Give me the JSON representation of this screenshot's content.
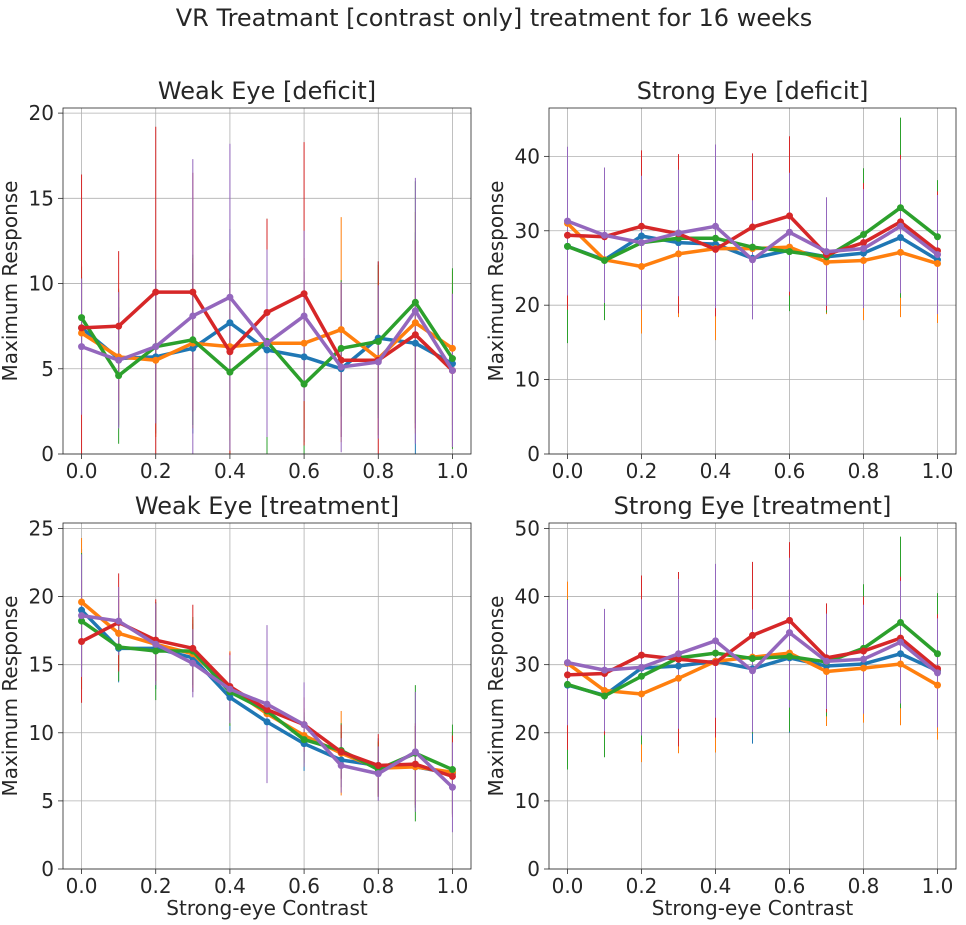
{
  "suptitle": "VR Treatmant [contrast only] treatment for 16 weeks",
  "colors": [
    "#1f77b4",
    "#ff7f0e",
    "#2ca02c",
    "#d62728",
    "#9467bd"
  ],
  "chart_data": [
    {
      "type": "line",
      "title": "Weak Eye [deficit]",
      "xlabel": "",
      "ylabel": "Maximum Response",
      "xlim": [
        -0.05,
        1.05
      ],
      "ylim": [
        0,
        20.3
      ],
      "xticks": [
        "0.0",
        "0.2",
        "0.4",
        "0.6",
        "0.8",
        "1.0"
      ],
      "yticks": [
        "0",
        "5",
        "10",
        "15",
        "20"
      ],
      "grid": true,
      "x": [
        0.0,
        0.1,
        0.2,
        0.3,
        0.4,
        0.5,
        0.6,
        0.7,
        0.8,
        0.9,
        1.0
      ],
      "series": [
        {
          "values": [
            7.4,
            5.6,
            5.7,
            6.2,
            7.7,
            6.1,
            5.7,
            5.0,
            6.8,
            6.5,
            5.3
          ]
        },
        {
          "values": [
            7.1,
            5.7,
            5.5,
            6.5,
            6.3,
            6.5,
            6.5,
            7.3,
            5.6,
            7.7,
            6.2
          ]
        },
        {
          "values": [
            8.0,
            4.6,
            6.3,
            6.7,
            4.8,
            6.6,
            4.1,
            6.2,
            6.6,
            8.9,
            5.6
          ]
        },
        {
          "values": [
            7.4,
            7.5,
            9.5,
            9.5,
            6.0,
            8.3,
            9.4,
            5.5,
            5.5,
            7.0,
            4.9
          ]
        },
        {
          "values": [
            6.3,
            5.5,
            6.3,
            8.1,
            9.2,
            6.5,
            8.1,
            5.1,
            5.4,
            8.4,
            4.9
          ]
        }
      ],
      "error": [
        [
          3.0,
          4.0,
          4.5,
          5.0,
          5.5,
          4.5,
          5.0,
          4.0,
          4.5,
          6.5,
          4.5
        ],
        [
          3.0,
          4.0,
          4.5,
          5.0,
          5.5,
          4.5,
          5.0,
          6.6,
          4.5,
          6.5,
          4.5
        ],
        [
          3.0,
          4.0,
          4.5,
          5.0,
          5.5,
          7.2,
          5.0,
          4.0,
          4.5,
          7.1,
          5.3
        ],
        [
          9.0,
          4.4,
          9.7,
          7.0,
          6.0,
          5.5,
          8.9,
          4.5,
          5.8,
          5.5,
          4.5
        ],
        [
          4.0,
          4.0,
          4.5,
          9.2,
          9.0,
          5.5,
          5.0,
          5.0,
          4.5,
          7.8,
          4.5
        ]
      ]
    },
    {
      "type": "line",
      "title": "Strong Eye [deficit]",
      "xlabel": "",
      "ylabel": "Maximum Response",
      "xlim": [
        -0.05,
        1.05
      ],
      "ylim": [
        0,
        46.5
      ],
      "xticks": [
        "0.0",
        "0.2",
        "0.4",
        "0.6",
        "0.8",
        "1.0"
      ],
      "yticks": [
        "0",
        "10",
        "20",
        "30",
        "40"
      ],
      "grid": true,
      "x": [
        0.0,
        0.1,
        0.2,
        0.3,
        0.4,
        0.5,
        0.6,
        0.7,
        0.8,
        0.9,
        1.0
      ],
      "series": [
        {
          "values": [
            27.9,
            26.1,
            29.3,
            28.4,
            28.2,
            26.3,
            27.4,
            26.5,
            27.0,
            29.1,
            26.1
          ]
        },
        {
          "values": [
            31.0,
            26.1,
            25.2,
            26.9,
            27.6,
            27.6,
            27.8,
            25.8,
            26.0,
            27.1,
            25.6
          ]
        },
        {
          "values": [
            27.9,
            26.0,
            28.4,
            29.0,
            29.0,
            27.8,
            27.2,
            26.5,
            29.5,
            33.1,
            29.2
          ]
        },
        {
          "values": [
            29.4,
            29.2,
            30.6,
            29.6,
            27.5,
            30.5,
            32.0,
            26.8,
            28.4,
            31.2,
            27.3
          ]
        },
        {
          "values": [
            31.3,
            29.4,
            28.4,
            29.7,
            30.6,
            26.1,
            29.8,
            27.2,
            27.6,
            30.6,
            26.8
          ]
        }
      ],
      "error": [
        [
          10.0,
          8.0,
          9.0,
          8.5,
          9.0,
          8.0,
          8.0,
          7.5,
          8.0,
          9.0,
          8.0
        ],
        [
          10.0,
          7.3,
          9.0,
          8.5,
          12.3,
          8.0,
          8.0,
          7.0,
          8.0,
          8.7,
          8.0
        ],
        [
          13.0,
          8.0,
          9.0,
          8.5,
          9.0,
          8.0,
          8.0,
          7.5,
          8.9,
          12.1,
          7.6
        ],
        [
          10.0,
          8.0,
          10.2,
          10.7,
          9.0,
          9.9,
          10.7,
          7.5,
          8.0,
          9.0,
          8.0
        ],
        [
          10.0,
          9.1,
          9.0,
          8.5,
          11.0,
          8.0,
          8.0,
          7.3,
          8.0,
          9.0,
          8.0
        ]
      ]
    },
    {
      "type": "line",
      "title": "Weak Eye [treatment]",
      "xlabel": "Strong-eye Contrast",
      "ylabel": "Maximum Response",
      "xlim": [
        -0.05,
        1.05
      ],
      "ylim": [
        0,
        25.4
      ],
      "xticks": [
        "0.0",
        "0.2",
        "0.4",
        "0.6",
        "0.8",
        "1.0"
      ],
      "yticks": [
        "0",
        "5",
        "10",
        "15",
        "20",
        "25"
      ],
      "grid": true,
      "x": [
        0.0,
        0.1,
        0.2,
        0.3,
        0.4,
        0.5,
        0.6,
        0.7,
        0.8,
        0.9,
        1.0
      ],
      "series": [
        {
          "values": [
            19.0,
            16.2,
            16.2,
            15.5,
            12.6,
            10.8,
            9.2,
            8.0,
            7.6,
            7.5,
            7.0
          ]
        },
        {
          "values": [
            19.6,
            17.3,
            16.5,
            15.8,
            13.3,
            11.4,
            9.8,
            8.5,
            7.4,
            7.5,
            7.1
          ]
        },
        {
          "values": [
            18.2,
            16.3,
            16.0,
            16.0,
            13.0,
            11.6,
            9.5,
            8.7,
            7.3,
            8.5,
            7.3
          ]
        },
        {
          "values": [
            16.7,
            18.1,
            16.8,
            16.2,
            13.4,
            11.7,
            10.6,
            8.6,
            7.6,
            7.7,
            6.8
          ]
        },
        {
          "values": [
            18.6,
            18.2,
            16.5,
            15.1,
            13.2,
            12.1,
            10.6,
            7.6,
            7.0,
            8.6,
            6.0
          ]
        }
      ],
      "error": [
        [
          4.5,
          2.5,
          3.0,
          2.5,
          2.5,
          2.5,
          2.0,
          2.0,
          2.0,
          3.0,
          3.0
        ],
        [
          4.7,
          2.5,
          3.0,
          2.5,
          2.7,
          2.5,
          2.0,
          3.1,
          2.0,
          3.0,
          3.0
        ],
        [
          5.0,
          2.5,
          3.6,
          2.5,
          2.5,
          2.5,
          2.0,
          2.0,
          2.0,
          5.0,
          3.3
        ],
        [
          4.5,
          3.6,
          3.0,
          3.2,
          2.5,
          2.5,
          2.0,
          2.0,
          2.3,
          3.0,
          3.0
        ],
        [
          4.5,
          2.5,
          3.0,
          2.5,
          2.5,
          5.8,
          3.1,
          2.0,
          2.0,
          4.4,
          3.3
        ]
      ]
    },
    {
      "type": "line",
      "title": "Strong Eye [treatment]",
      "xlabel": "Strong-eye Contrast",
      "ylabel": "Maximum Response",
      "xlim": [
        -0.05,
        1.05
      ],
      "ylim": [
        0,
        50.8
      ],
      "xticks": [
        "0.0",
        "0.2",
        "0.4",
        "0.6",
        "0.8",
        "1.0"
      ],
      "yticks": [
        "0",
        "10",
        "20",
        "30",
        "40",
        "50"
      ],
      "grid": true,
      "x": [
        0.0,
        0.1,
        0.2,
        0.3,
        0.4,
        0.5,
        0.6,
        0.7,
        0.8,
        0.9,
        1.0
      ],
      "series": [
        {
          "values": [
            27.0,
            25.5,
            29.5,
            29.8,
            30.5,
            29.4,
            31.0,
            29.8,
            30.1,
            31.6,
            29.1
          ]
        },
        {
          "values": [
            30.2,
            26.2,
            25.7,
            28.0,
            30.5,
            31.1,
            31.7,
            29.0,
            29.5,
            30.1,
            27.0
          ]
        },
        {
          "values": [
            27.1,
            25.4,
            28.3,
            31.0,
            31.7,
            30.9,
            31.2,
            30.4,
            32.4,
            36.2,
            31.6
          ]
        },
        {
          "values": [
            28.5,
            28.7,
            31.4,
            30.8,
            30.3,
            34.3,
            36.5,
            31.0,
            32.0,
            33.9,
            29.4
          ]
        },
        {
          "values": [
            30.3,
            29.2,
            29.6,
            31.6,
            33.5,
            29.1,
            34.7,
            30.5,
            30.8,
            33.3,
            28.8
          ]
        }
      ],
      "error": [
        [
          12.0,
          9.0,
          10.0,
          11.0,
          11.0,
          11.0,
          11.0,
          8.0,
          8.0,
          9.0,
          8.0
        ],
        [
          12.0,
          7.8,
          10.0,
          11.0,
          13.4,
          11.0,
          11.0,
          8.0,
          8.0,
          9.0,
          8.0
        ],
        [
          12.5,
          9.0,
          10.0,
          11.0,
          11.0,
          11.0,
          11.0,
          8.0,
          9.4,
          12.6,
          8.9
        ],
        [
          11.0,
          9.0,
          11.7,
          12.8,
          11.0,
          10.8,
          11.5,
          8.0,
          8.0,
          9.0,
          8.0
        ],
        [
          9.2,
          9.0,
          10.0,
          11.0,
          11.3,
          9.0,
          11.0,
          7.0,
          8.0,
          9.0,
          8.0
        ]
      ]
    }
  ]
}
